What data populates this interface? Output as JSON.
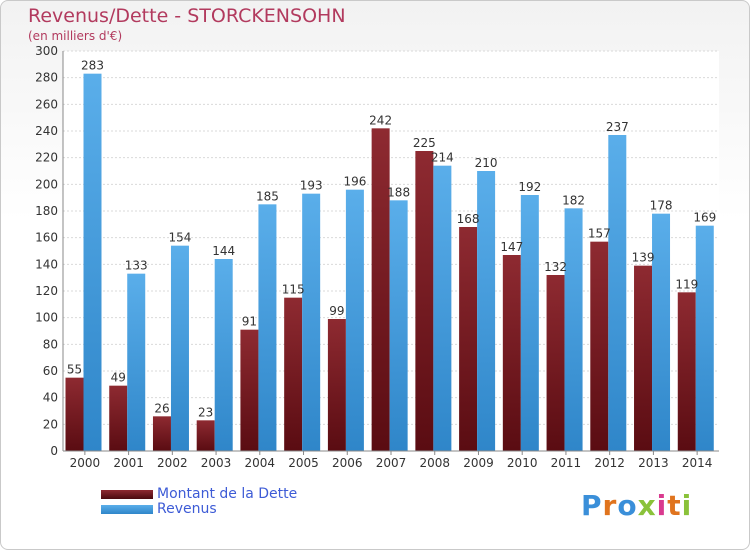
{
  "header": {
    "title": "Revenus/Dette - STORCKENSOHN",
    "subtitle": "(en milliers d'€)"
  },
  "legend": {
    "debt_label": "Montant de la Dette",
    "revenue_label": "Revenus"
  },
  "logo": {
    "text": "Proxiti"
  },
  "colors": {
    "debt": "#7f1d24",
    "debt_dark": "#4a0a0f",
    "revenue": "#56a9e6",
    "revenue_dark": "#2b7ec2",
    "title": "#b23a5e",
    "legend_text": "#3d5bd6"
  },
  "chart_data": {
    "type": "bar",
    "categories": [
      "2000",
      "2001",
      "2002",
      "2003",
      "2004",
      "2005",
      "2006",
      "2007",
      "2008",
      "2009",
      "2010",
      "2011",
      "2012",
      "2013",
      "2014"
    ],
    "series": [
      {
        "name": "Montant de la Dette",
        "values": [
          55,
          49,
          26,
          23,
          91,
          115,
          99,
          242,
          225,
          168,
          147,
          132,
          157,
          139,
          119
        ]
      },
      {
        "name": "Revenus",
        "values": [
          283,
          133,
          154,
          144,
          185,
          193,
          196,
          188,
          214,
          210,
          192,
          182,
          237,
          178,
          169
        ]
      }
    ],
    "ylim": [
      0,
      300
    ],
    "yticks": [
      0,
      20,
      40,
      60,
      80,
      100,
      120,
      140,
      160,
      180,
      200,
      220,
      240,
      260,
      280,
      300
    ],
    "grid": true
  }
}
